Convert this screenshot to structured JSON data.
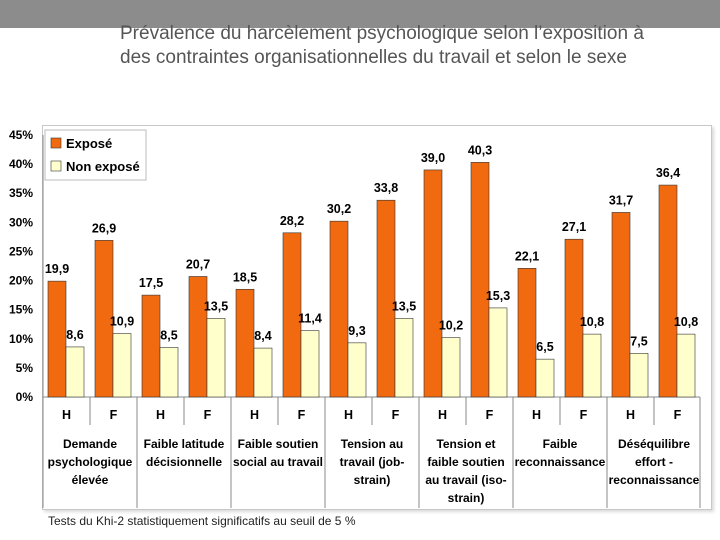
{
  "slide": {
    "title_line1": "Prévalence du harcèlement psychologique selon l’exposition à",
    "title_line2": "des contraintes organisationnelles du travail et selon le sexe",
    "footnote": "Tests du Khi-2 statistiquement significatifs au seuil de 5 %"
  },
  "colors": {
    "expose": "#F26A10",
    "non_expose": "#FFFFCC",
    "border": "#333333",
    "grid": "#BBBBBB"
  },
  "chart_data": {
    "type": "bar",
    "title": "",
    "xlabel": "",
    "ylabel": "",
    "ylim": [
      0,
      45
    ],
    "yticks": [
      0,
      5,
      10,
      15,
      20,
      25,
      30,
      35,
      40,
      45
    ],
    "ytick_labels": [
      "0%",
      "5%",
      "10%",
      "15%",
      "20%",
      "25%",
      "30%",
      "35%",
      "40%",
      "45%"
    ],
    "legend_position": "top-left",
    "categories": [
      "H",
      "F",
      "H",
      "F",
      "H",
      "F",
      "H",
      "F",
      "H",
      "F",
      "H",
      "F",
      "H",
      "F"
    ],
    "groups": [
      {
        "label": [
          "Demande",
          "psychologique",
          "élevée"
        ]
      },
      {
        "label": [
          "Faible latitude",
          "décisionnelle"
        ]
      },
      {
        "label": [
          "Faible soutien",
          "social au travail"
        ]
      },
      {
        "label": [
          "Tension au",
          "travail (job-",
          "strain)"
        ]
      },
      {
        "label": [
          "Tension et",
          "faible soutien",
          "au travail (iso-",
          "strain)"
        ]
      },
      {
        "label": [
          "Faible",
          "reconnaissance"
        ]
      },
      {
        "label": [
          "Déséquilibre",
          "effort -",
          "reconnaissance"
        ]
      }
    ],
    "series": [
      {
        "name": "Exposé",
        "values": [
          19.9,
          26.9,
          17.5,
          20.7,
          18.5,
          28.2,
          30.2,
          33.8,
          39.0,
          40.3,
          22.1,
          27.1,
          31.7,
          36.4
        ],
        "labels": [
          "19,9",
          "26,9",
          "17,5",
          "20,7",
          "18,5",
          "28,2",
          "30,2",
          "33,8",
          "39,0",
          "40,3",
          "22,1",
          "27,1",
          "31,7",
          "36,4"
        ]
      },
      {
        "name": "Non exposé",
        "values": [
          8.6,
          10.9,
          8.5,
          13.5,
          8.4,
          11.4,
          9.3,
          13.5,
          10.2,
          15.3,
          6.5,
          10.8,
          7.5,
          10.8
        ],
        "labels": [
          "8,6",
          "10,9",
          "8,5",
          "13,5",
          "8,4",
          "11,4",
          "9,3",
          "13,5",
          "10,2",
          "15,3",
          "6,5",
          "10,8",
          "7,5",
          "10,8"
        ]
      }
    ]
  }
}
